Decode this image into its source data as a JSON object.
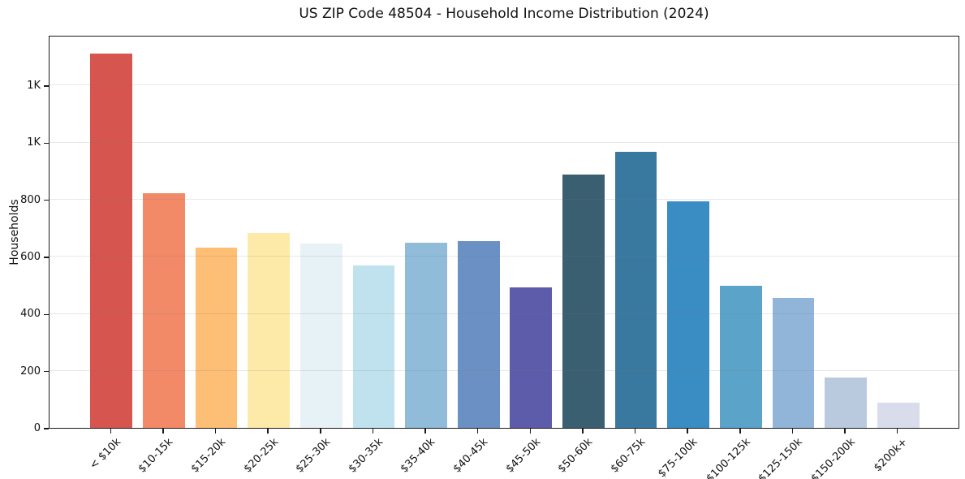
{
  "chart_data": {
    "type": "bar",
    "title": "US ZIP Code 48504 - Household Income Distribution (2024)",
    "xlabel": "",
    "ylabel": "Households",
    "categories": [
      "< $10k",
      "$10-15k",
      "$15-20k",
      "$20-25k",
      "$25-30k",
      "$30-35k",
      "$35-40k",
      "$40-45k",
      "$45-50k",
      "$50-60k",
      "$60-75k",
      "$75-100k",
      "$100-125k",
      "$125-150k",
      "$150-200k",
      "$200k+"
    ],
    "values": [
      1312,
      822,
      631,
      683,
      645,
      568,
      648,
      653,
      492,
      888,
      968,
      792,
      497,
      456,
      177,
      89
    ],
    "bar_colors": [
      "#d6554e",
      "#f28a68",
      "#fdbe75",
      "#fdeaa9",
      "#e7f2f7",
      "#c0e1ee",
      "#90bcda",
      "#6b91c4",
      "#5c5cab",
      "#3a5f70",
      "#39799f",
      "#3a8dc3",
      "#5ba3c9",
      "#90b5d8",
      "#bacade",
      "#d9dcea"
    ],
    "yticks": {
      "values": [
        0,
        200,
        400,
        600,
        800,
        1000,
        1200
      ],
      "labels": [
        "0",
        "200",
        "400",
        "600",
        "800",
        "1K",
        "1K"
      ]
    },
    "ylim": [
      0,
      1376
    ],
    "grid": "horizontal",
    "grid_color": "rgba(120,120,120,0.18)",
    "legend": "none",
    "background": "#ffffff",
    "spine_color": "#1a1a1a",
    "text_color": "#111111"
  }
}
